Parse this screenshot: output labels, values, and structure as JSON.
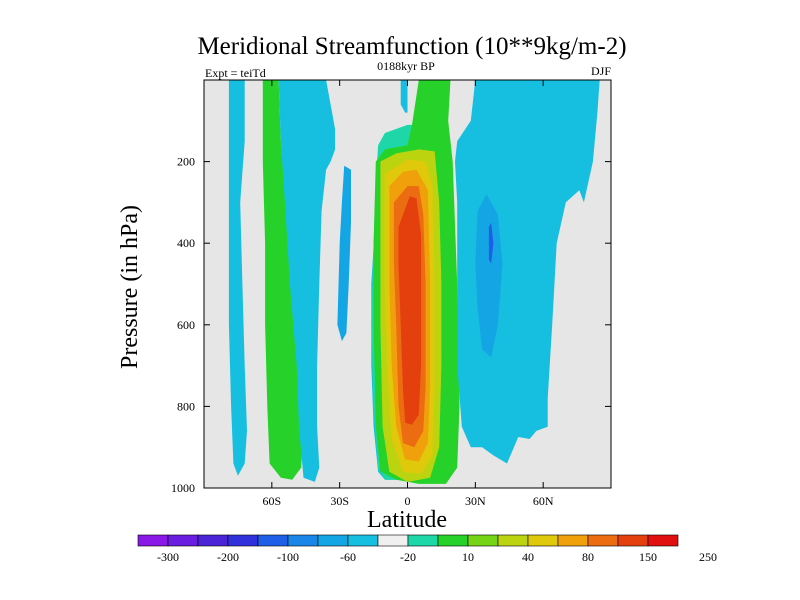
{
  "chart_data": {
    "type": "contour",
    "title": "Meridional Streamfunction (10**9kg/m-2)",
    "left_label": "Expt = teiTd",
    "center_label": "0188kyr BP",
    "right_label": "DJF",
    "xlabel": "Latitude",
    "ylabel": "Pressure (in hPa)",
    "xlim": [
      -90,
      90
    ],
    "ylim": [
      0,
      1000
    ],
    "y_reversed": true,
    "x_ticks": [
      -60,
      -30,
      0,
      30,
      60
    ],
    "x_tick_labels": [
      "60S",
      "30S",
      "0",
      "30N",
      "60N"
    ],
    "y_ticks": [
      200,
      400,
      600,
      800,
      1000
    ],
    "y_tick_labels": [
      "200",
      "400",
      "600",
      "800",
      "1000"
    ],
    "background_color": "#e6e6e6",
    "colorbar": {
      "colors": [
        "#8a18e6",
        "#6a1edf",
        "#4a24d6",
        "#3131dc",
        "#1f5ee6",
        "#1a86e8",
        "#14a6e4",
        "#16bfe0",
        "#f0f0f0",
        "#1dd7a8",
        "#26d22a",
        "#76d416",
        "#bcd410",
        "#e0c80a",
        "#f0a00a",
        "#ec6c12",
        "#e4400e",
        "#e01010"
      ],
      "labels": [
        "-300",
        "-200",
        "-100",
        "-60",
        "-20",
        "10",
        "40",
        "80",
        "150",
        "250"
      ]
    },
    "regions": [
      {
        "name": "region-sh-polar-cell",
        "value": -20,
        "color": "#16bfe0",
        "points": [
          [
            -79,
            0
          ],
          [
            -72,
            0
          ],
          [
            -72,
            150
          ],
          [
            -74,
            300
          ],
          [
            -73,
            500
          ],
          [
            -72,
            700
          ],
          [
            -71,
            860
          ],
          [
            -72,
            940
          ],
          [
            -75,
            970
          ],
          [
            -77,
            940
          ],
          [
            -78,
            800
          ],
          [
            -79,
            600
          ],
          [
            -79,
            300
          ]
        ]
      },
      {
        "name": "region-sh-ferrel-cell",
        "value": 40,
        "color": "#26d22a",
        "points": [
          [
            -64,
            0
          ],
          [
            -57,
            0
          ],
          [
            -56,
            150
          ],
          [
            -54,
            300
          ],
          [
            -50,
            500
          ],
          [
            -47,
            700
          ],
          [
            -46,
            850
          ],
          [
            -47,
            950
          ],
          [
            -51,
            980
          ],
          [
            -56,
            975
          ],
          [
            -61,
            940
          ],
          [
            -62,
            800
          ],
          [
            -63,
            600
          ],
          [
            -63,
            400
          ],
          [
            -64,
            200
          ]
        ]
      },
      {
        "name": "region-sh-westerly-band",
        "value": -20,
        "color": "#16bfe0",
        "points": [
          [
            -53,
            0
          ],
          [
            -36,
            0
          ],
          [
            -34,
            60
          ],
          [
            -32,
            120
          ],
          [
            -32,
            170
          ],
          [
            -34,
            200
          ],
          [
            -36,
            220
          ],
          [
            -38,
            320
          ],
          [
            -39,
            500
          ],
          [
            -40,
            700
          ],
          [
            -40,
            850
          ],
          [
            -39,
            950
          ],
          [
            -41,
            985
          ],
          [
            -46,
            975
          ],
          [
            -48,
            850
          ],
          [
            -49,
            700
          ],
          [
            -52,
            500
          ],
          [
            -54,
            320
          ],
          [
            -56,
            150
          ],
          [
            -57,
            0
          ]
        ]
      },
      {
        "name": "region-sh-westerly-core",
        "value": -60,
        "color": "#14a6e4",
        "points": [
          [
            -28,
            210
          ],
          [
            -25,
            220
          ],
          [
            -25,
            350
          ],
          [
            -26,
            500
          ],
          [
            -27,
            620
          ],
          [
            -29,
            640
          ],
          [
            -31,
            600
          ],
          [
            -30,
            400
          ],
          [
            -29,
            300
          ]
        ]
      },
      {
        "name": "region-hadley-outer-ring",
        "value": -20,
        "color": "#16bfe0",
        "points": [
          [
            -13,
            180
          ],
          [
            -11,
            160
          ],
          [
            -14,
            320
          ],
          [
            -16,
            500
          ],
          [
            -16,
            700
          ],
          [
            -15,
            850
          ],
          [
            -13,
            960
          ],
          [
            -10,
            980
          ],
          [
            -5,
            980
          ]
        ]
      },
      {
        "name": "region-hadley-cell-10",
        "value": 10,
        "color": "#1dd7a8",
        "points": [
          [
            -13,
            160
          ],
          [
            -10,
            130
          ],
          [
            0,
            110
          ],
          [
            8,
            110
          ],
          [
            12,
            120
          ],
          [
            12,
            150
          ],
          [
            14,
            500
          ],
          [
            15,
            700
          ],
          [
            14,
            850
          ],
          [
            13,
            950
          ],
          [
            8,
            980
          ],
          [
            -10,
            980
          ],
          [
            -13,
            950
          ],
          [
            -15,
            800
          ],
          [
            -16,
            600
          ],
          [
            -15,
            400
          ],
          [
            -14,
            250
          ]
        ]
      },
      {
        "name": "region-hadley-cell-40",
        "value": 40,
        "color": "#26d22a",
        "points": [
          [
            5,
            0
          ],
          [
            19,
            0
          ],
          [
            18,
            100
          ],
          [
            20,
            200
          ],
          [
            22,
            500
          ],
          [
            23,
            800
          ],
          [
            22,
            950
          ],
          [
            17,
            990
          ],
          [
            5,
            990
          ],
          [
            -5,
            980
          ],
          [
            -12,
            960
          ],
          [
            -14,
            850
          ],
          [
            -15,
            600
          ],
          [
            -15,
            400
          ],
          [
            -14,
            200
          ],
          [
            -10,
            170
          ],
          [
            0,
            160
          ],
          [
            2,
            110
          ]
        ]
      },
      {
        "name": "region-hadley-cell-80",
        "value": 80,
        "color": "#bcd410",
        "points": [
          [
            -12,
            200
          ],
          [
            -5,
            180
          ],
          [
            5,
            170
          ],
          [
            12,
            175
          ],
          [
            14,
            300
          ],
          [
            15,
            500
          ],
          [
            15,
            700
          ],
          [
            14,
            900
          ],
          [
            10,
            975
          ],
          [
            0,
            985
          ],
          [
            -8,
            960
          ],
          [
            -11,
            850
          ],
          [
            -12,
            600
          ],
          [
            -12,
            400
          ]
        ]
      },
      {
        "name": "region-hadley-cell-100",
        "value": 100,
        "color": "#e0c80a",
        "points": [
          [
            -10,
            230
          ],
          [
            0,
            195
          ],
          [
            8,
            200
          ],
          [
            11,
            260
          ],
          [
            12,
            500
          ],
          [
            12,
            760
          ],
          [
            11,
            920
          ],
          [
            6,
            965
          ],
          [
            -2,
            960
          ],
          [
            -7,
            880
          ],
          [
            -9,
            700
          ],
          [
            -10,
            500
          ],
          [
            -10,
            350
          ]
        ]
      },
      {
        "name": "region-hadley-cell-150",
        "value": 150,
        "color": "#f0a00a",
        "points": [
          [
            -8,
            260
          ],
          [
            -2,
            225
          ],
          [
            4,
            220
          ],
          [
            9,
            270
          ],
          [
            10,
            500
          ],
          [
            10,
            750
          ],
          [
            9,
            890
          ],
          [
            5,
            935
          ],
          [
            -1,
            930
          ],
          [
            -5,
            850
          ],
          [
            -7,
            700
          ],
          [
            -8,
            500
          ],
          [
            -8,
            350
          ]
        ]
      },
      {
        "name": "region-hadley-cell-200",
        "value": 200,
        "color": "#ec6c12",
        "points": [
          [
            -6,
            300
          ],
          [
            0,
            260
          ],
          [
            5,
            260
          ],
          [
            7,
            330
          ],
          [
            8,
            500
          ],
          [
            8,
            750
          ],
          [
            7,
            860
          ],
          [
            3,
            900
          ],
          [
            -2,
            890
          ],
          [
            -4,
            800
          ],
          [
            -5,
            600
          ],
          [
            -6,
            450
          ]
        ]
      },
      {
        "name": "region-hadley-cell-250",
        "value": 250,
        "color": "#e4400e",
        "points": [
          [
            -4,
            360
          ],
          [
            1,
            285
          ],
          [
            4,
            290
          ],
          [
            6,
            380
          ],
          [
            6,
            500
          ],
          [
            6,
            700
          ],
          [
            5,
            820
          ],
          [
            2,
            845
          ],
          [
            -1,
            840
          ],
          [
            -2,
            760
          ],
          [
            -3,
            600
          ],
          [
            -4,
            450
          ]
        ]
      },
      {
        "name": "region-top-pocket",
        "value": -20,
        "color": "#16bfe0",
        "points": [
          [
            -3,
            0
          ],
          [
            0,
            0
          ],
          [
            0,
            80
          ],
          [
            -1,
            80
          ],
          [
            -3,
            60
          ]
        ]
      },
      {
        "name": "region-nh-ferrel-cell",
        "value": -20,
        "color": "#16bfe0",
        "points": [
          [
            30,
            0
          ],
          [
            85,
            0
          ],
          [
            84,
            80
          ],
          [
            82,
            200
          ],
          [
            78,
            300
          ],
          [
            76,
            270
          ],
          [
            70,
            300
          ],
          [
            66,
            400
          ],
          [
            64,
            600
          ],
          [
            62,
            780
          ],
          [
            62,
            850
          ],
          [
            57,
            860
          ],
          [
            54,
            880
          ],
          [
            49,
            875
          ],
          [
            44,
            940
          ],
          [
            38,
            920
          ],
          [
            33,
            900
          ],
          [
            28,
            900
          ],
          [
            24,
            850
          ],
          [
            22,
            700
          ],
          [
            22,
            500
          ],
          [
            22,
            300
          ],
          [
            21,
            200
          ],
          [
            22,
            150
          ],
          [
            28,
            100
          ]
        ]
      },
      {
        "name": "region-nh-ferrel-core",
        "value": -60,
        "color": "#14a6e4",
        "points": [
          [
            31,
            320
          ],
          [
            35,
            280
          ],
          [
            40,
            330
          ],
          [
            42,
            450
          ],
          [
            40,
            600
          ],
          [
            37,
            680
          ],
          [
            33,
            660
          ],
          [
            31,
            560
          ],
          [
            30,
            450
          ]
        ]
      },
      {
        "name": "region-nh-ferrel-inner",
        "value": -100,
        "color": "#1f5ee6",
        "points": [
          [
            36,
            360
          ],
          [
            37,
            350
          ],
          [
            38,
            400
          ],
          [
            37,
            450
          ],
          [
            36,
            440
          ]
        ]
      }
    ]
  }
}
